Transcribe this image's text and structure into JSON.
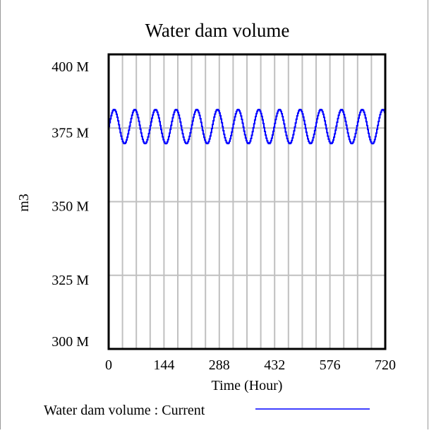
{
  "chart_data": {
    "type": "line",
    "title": "Water dam volume",
    "xlabel": "Time (Hour)",
    "ylabel": "m3",
    "xlim": [
      0,
      720
    ],
    "ylim": [
      300,
      400
    ],
    "x_ticks": [
      0,
      144,
      288,
      432,
      576,
      720
    ],
    "x_tick_labels": [
      "0",
      "144",
      "288",
      "432",
      "576",
      "720"
    ],
    "y_ticks": [
      400,
      375,
      350,
      325,
      300
    ],
    "y_tick_labels": [
      "400 M",
      "375 M",
      "350 M",
      "325 M",
      "300 M"
    ],
    "x_grid_step": 36,
    "grid": true,
    "legend_position": "bottom",
    "series": [
      {
        "name": "Water dam volume : Current",
        "color": "#0000ff",
        "model": {
          "mean": 375.5,
          "amplitude": 5.8,
          "period_hours": 53.8,
          "step_hours": 2
        },
        "description": "oscillates sinusoidally between ~369.7 M and ~381.3 M"
      }
    ]
  },
  "colors": {
    "grid": "#c0c0c0",
    "axis": "#000000",
    "series": "#0000ff",
    "border": "#999999"
  }
}
